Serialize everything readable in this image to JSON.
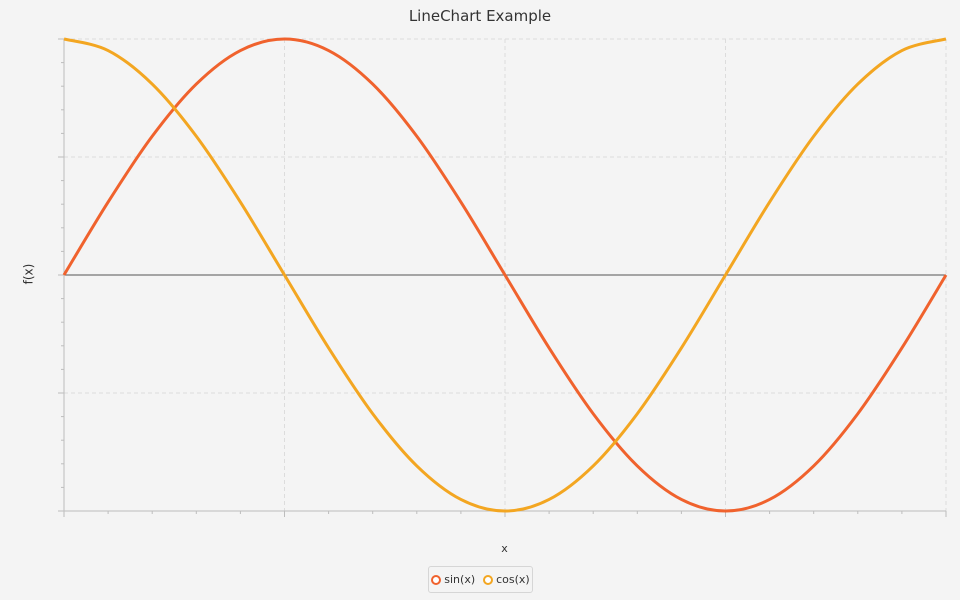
{
  "chart_data": {
    "type": "line",
    "title": "LineChart Example",
    "xlabel": "x",
    "ylabel": "f(x)",
    "xlim": [
      0,
      6.2832
    ],
    "ylim": [
      -1,
      1
    ],
    "grid": true,
    "legend_position": "bottom",
    "x": [
      0,
      0.3142,
      0.6283,
      0.9425,
      1.2566,
      1.5708,
      1.885,
      2.1991,
      2.5133,
      2.8274,
      3.1416,
      3.4558,
      3.7699,
      4.0841,
      4.3982,
      4.7124,
      5.0265,
      5.3407,
      5.6549,
      5.969,
      6.2832
    ],
    "series": [
      {
        "name": "sin(x)",
        "color": "#f0622d",
        "values": [
          0,
          0.309,
          0.5878,
          0.809,
          0.9511,
          1,
          0.9511,
          0.809,
          0.5878,
          0.309,
          0,
          -0.309,
          -0.5878,
          -0.809,
          -0.9511,
          -1,
          -0.9511,
          -0.809,
          -0.5878,
          -0.309,
          0
        ]
      },
      {
        "name": "cos(x)",
        "color": "#f3a621",
        "values": [
          1,
          0.9511,
          0.809,
          0.5878,
          0.309,
          0,
          -0.309,
          -0.5878,
          -0.809,
          -0.9511,
          -1,
          -0.9511,
          -0.809,
          -0.5878,
          -0.309,
          0,
          0.309,
          0.5878,
          0.809,
          0.9511,
          1
        ]
      }
    ]
  }
}
